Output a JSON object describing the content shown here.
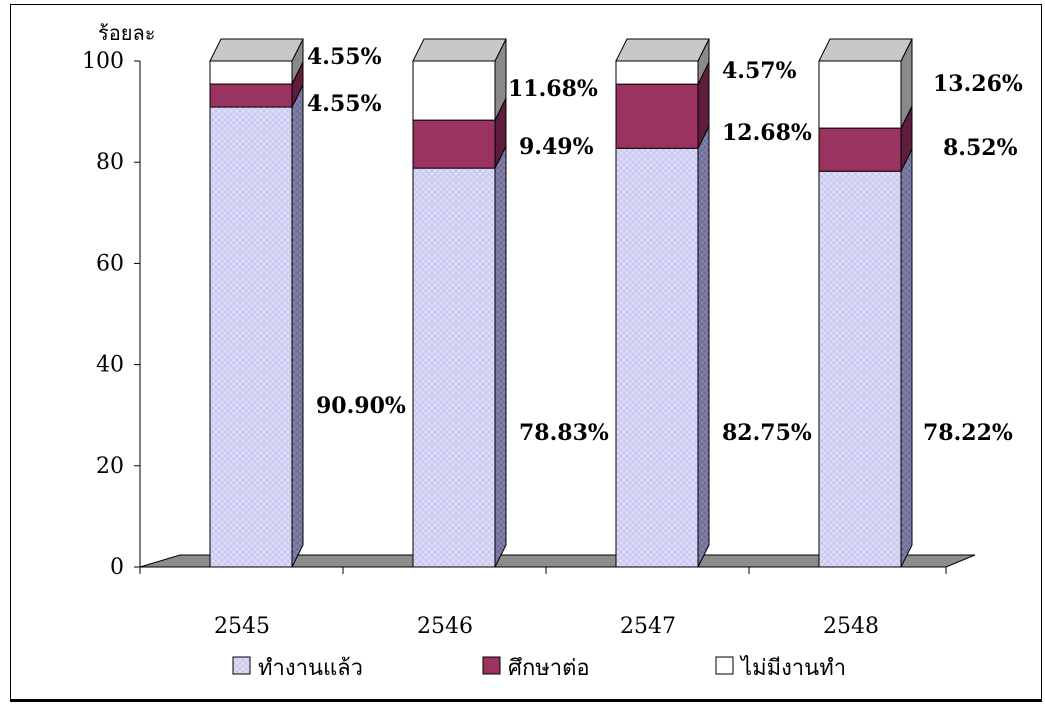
{
  "chart_data": {
    "type": "bar",
    "stacked": true,
    "categories": [
      "2545",
      "2546",
      "2547",
      "2548"
    ],
    "ylabel": "ร้อยละ",
    "ylim": [
      0,
      100
    ],
    "yticks": [
      0,
      20,
      40,
      60,
      80,
      100
    ],
    "grid": false,
    "legend_position": "bottom",
    "series": [
      {
        "name": "ทำงานแล้ว",
        "values": [
          90.9,
          78.83,
          82.75,
          78.22
        ],
        "labels": [
          "90.90%",
          "78.83%",
          "82.75%",
          "78.22%"
        ],
        "color": "#dcdcf7"
      },
      {
        "name": "ศึกษาต่อ",
        "values": [
          4.55,
          9.49,
          12.68,
          8.52
        ],
        "labels": [
          "4.55%",
          "9.49%",
          "12.68%",
          "8.52%"
        ],
        "color": "#9b3360"
      },
      {
        "name": "ไม่มีงานทำ",
        "values": [
          4.55,
          11.68,
          4.57,
          13.26
        ],
        "labels": [
          "4.55%",
          "11.68%",
          "4.57%",
          "13.26%"
        ],
        "color": "#ffffff"
      }
    ]
  }
}
